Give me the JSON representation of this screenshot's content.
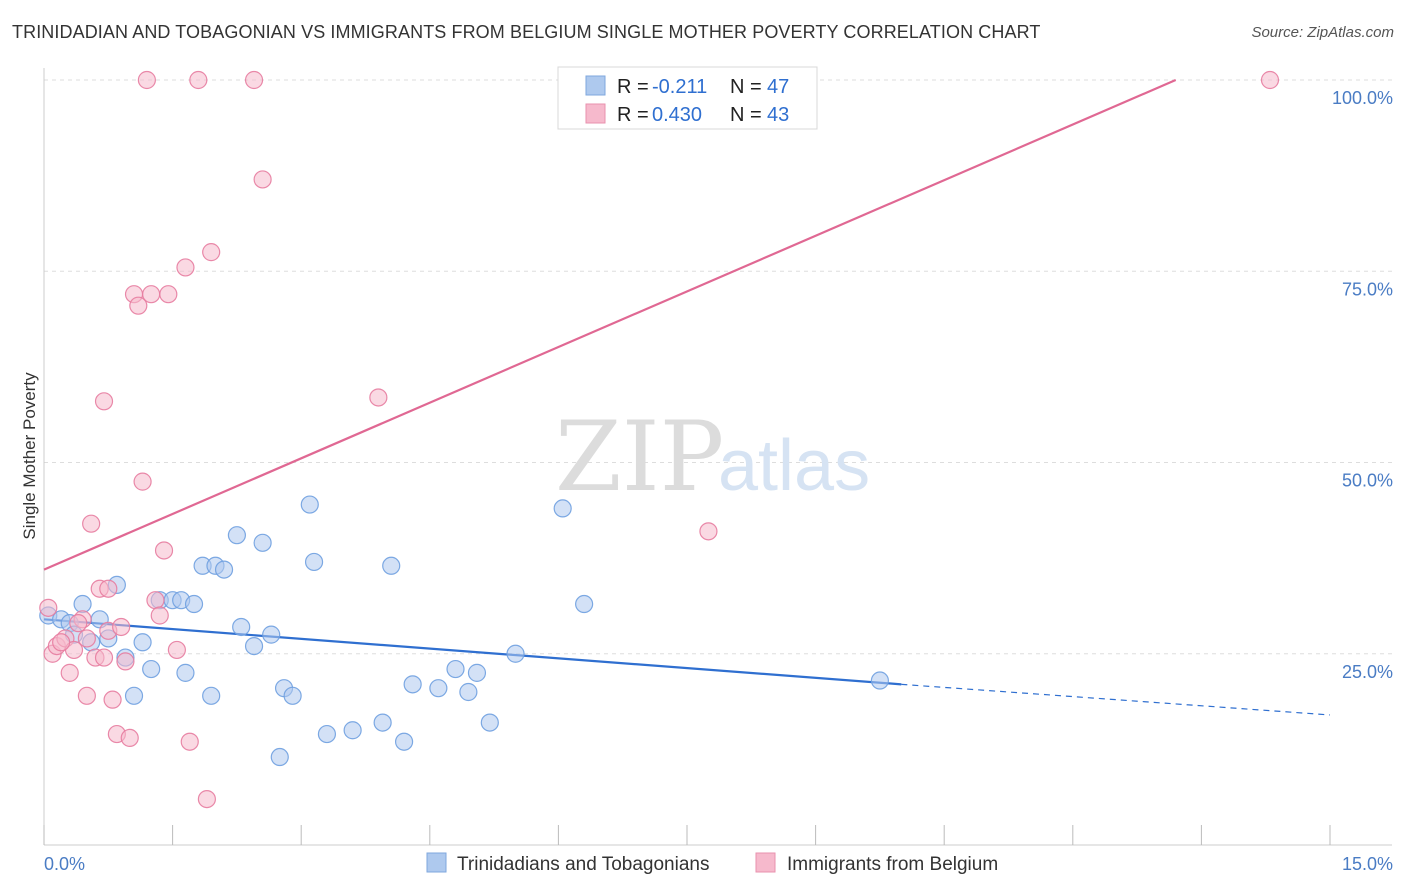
{
  "title": "TRINIDADIAN AND TOBAGONIAN VS IMMIGRANTS FROM BELGIUM SINGLE MOTHER POVERTY CORRELATION CHART",
  "source": "Source: ZipAtlas.com",
  "watermark": {
    "part1": "ZIP",
    "part2": "atlas"
  },
  "legend_top": {
    "rows": [
      {
        "r_label": "R =",
        "r_value": "-0.211",
        "n_label": "N =",
        "n_value": "47",
        "color": "#aec9ee"
      },
      {
        "r_label": "R =",
        "r_value": "0.430",
        "n_label": "N =",
        "n_value": "43",
        "color": "#f6b9cc"
      }
    ]
  },
  "legend_bottom": {
    "items": [
      {
        "label": "Trinidadians and Tobagonians",
        "color": "#aec9ee"
      },
      {
        "label": "Immigrants from Belgium",
        "color": "#f6b9cc"
      }
    ]
  },
  "chart_data": {
    "type": "scatter",
    "title": "TRINIDADIAN AND TOBAGONIAN VS IMMIGRANTS FROM BELGIUM SINGLE MOTHER POVERTY CORRELATION CHART",
    "xlabel": "",
    "ylabel": "Single Mother Poverty",
    "xlim": [
      0,
      15
    ],
    "ylim": [
      0,
      100
    ],
    "x_tick_labels": [
      "0.0%",
      "15.0%"
    ],
    "y_tick_labels": [
      "100.0%",
      "75.0%",
      "50.0%",
      "25.0%"
    ],
    "y_ticks": [
      100,
      75,
      50,
      25
    ],
    "grid": true,
    "legend_position": "top-center",
    "series": [
      {
        "name": "Trinidadians and Tobagonians",
        "color": "#6fa0e0",
        "fill": "#aec9ee",
        "points": [
          [
            0.05,
            30.0
          ],
          [
            0.2,
            29.5
          ],
          [
            0.3,
            29.0
          ],
          [
            0.35,
            27.5
          ],
          [
            0.45,
            31.5
          ],
          [
            0.55,
            26.5
          ],
          [
            0.65,
            29.5
          ],
          [
            0.75,
            27.0
          ],
          [
            0.85,
            34.0
          ],
          [
            0.95,
            24.5
          ],
          [
            1.05,
            19.5
          ],
          [
            1.15,
            26.5
          ],
          [
            1.25,
            23.0
          ],
          [
            1.35,
            32.0
          ],
          [
            1.5,
            32.0
          ],
          [
            1.6,
            32.0
          ],
          [
            1.65,
            22.5
          ],
          [
            1.75,
            31.5
          ],
          [
            1.85,
            36.5
          ],
          [
            1.95,
            19.5
          ],
          [
            2.0,
            36.5
          ],
          [
            2.1,
            36.0
          ],
          [
            2.25,
            40.5
          ],
          [
            2.3,
            28.5
          ],
          [
            2.45,
            26.0
          ],
          [
            2.55,
            39.5
          ],
          [
            2.65,
            27.5
          ],
          [
            2.8,
            20.5
          ],
          [
            2.9,
            19.5
          ],
          [
            2.75,
            11.5
          ],
          [
            3.1,
            44.5
          ],
          [
            3.15,
            37.0
          ],
          [
            3.3,
            14.5
          ],
          [
            3.6,
            15.0
          ],
          [
            3.95,
            16.0
          ],
          [
            4.05,
            36.5
          ],
          [
            4.2,
            13.5
          ],
          [
            4.3,
            21.0
          ],
          [
            4.6,
            20.5
          ],
          [
            4.8,
            23.0
          ],
          [
            4.95,
            20.0
          ],
          [
            5.05,
            22.5
          ],
          [
            5.2,
            16.0
          ],
          [
            5.5,
            25.0
          ],
          [
            6.05,
            44.0
          ],
          [
            6.3,
            31.5
          ],
          [
            9.75,
            21.5
          ]
        ]
      },
      {
        "name": "Immigrants from Belgium",
        "color": "#e77ca0",
        "fill": "#f6b9cc",
        "points": [
          [
            0.05,
            31.0
          ],
          [
            0.1,
            25.0
          ],
          [
            0.15,
            26.0
          ],
          [
            0.25,
            27.0
          ],
          [
            0.3,
            22.5
          ],
          [
            0.35,
            25.5
          ],
          [
            0.45,
            29.5
          ],
          [
            0.5,
            19.5
          ],
          [
            0.55,
            42.0
          ],
          [
            0.6,
            24.5
          ],
          [
            0.65,
            33.5
          ],
          [
            0.7,
            24.5
          ],
          [
            0.7,
            58.0
          ],
          [
            0.75,
            33.5
          ],
          [
            0.75,
            28.0
          ],
          [
            0.8,
            19.0
          ],
          [
            0.85,
            14.5
          ],
          [
            0.9,
            28.5
          ],
          [
            0.95,
            24.0
          ],
          [
            1.0,
            14.0
          ],
          [
            1.05,
            72.0
          ],
          [
            1.1,
            70.5
          ],
          [
            1.15,
            47.5
          ],
          [
            1.2,
            100.0
          ],
          [
            1.25,
            72.0
          ],
          [
            1.3,
            32.0
          ],
          [
            1.35,
            30.0
          ],
          [
            1.4,
            38.5
          ],
          [
            1.45,
            72.0
          ],
          [
            1.55,
            25.5
          ],
          [
            1.65,
            75.5
          ],
          [
            1.7,
            13.5
          ],
          [
            1.8,
            100.0
          ],
          [
            1.9,
            6.0
          ],
          [
            1.95,
            77.5
          ],
          [
            2.45,
            100.0
          ],
          [
            2.55,
            87.0
          ],
          [
            3.9,
            58.5
          ],
          [
            7.75,
            41.0
          ],
          [
            14.3,
            100.0
          ],
          [
            0.2,
            26.5
          ],
          [
            0.4,
            29.0
          ],
          [
            0.5,
            27.0
          ]
        ]
      }
    ],
    "trend_lines": [
      {
        "series": "Trinidadians and Tobagonians",
        "x": [
          0,
          10.0
        ],
        "y": [
          29.5,
          21.0
        ],
        "dashed_extension_to_x": 15,
        "dashed_extension_y": 17.0
      },
      {
        "series": "Immigrants from Belgium",
        "x": [
          0,
          13.2
        ],
        "y": [
          36.0,
          100.0
        ]
      }
    ]
  }
}
